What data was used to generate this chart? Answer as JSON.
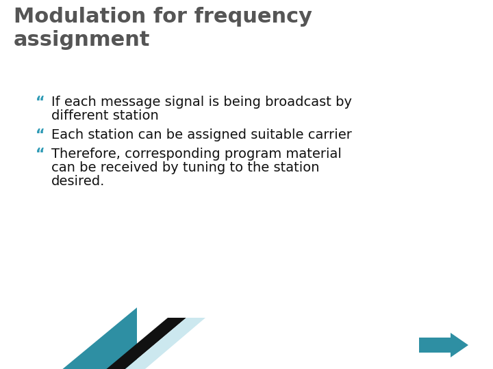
{
  "title_line1": "Modulation for frequency",
  "title_line2": "assignment",
  "title_color": "#555555",
  "title_fontsize": 22,
  "bullet_color": "#2E9AB5",
  "bullet_text_color": "#111111",
  "bullet_fontsize": 14,
  "bullets": [
    [
      "If each message signal is being broadcast by",
      "different station"
    ],
    [
      "Each station can be assigned suitable carrier"
    ],
    [
      "Therefore, corresponding program material",
      "can be received by tuning to the station",
      "desired."
    ]
  ],
  "background_color": "#ffffff",
  "arrow_color": "#2E8FA3",
  "decor_teal": "#2E8FA3",
  "decor_black": "#111111",
  "decor_lightblue": "#cce8ef",
  "bullet_char": "“"
}
